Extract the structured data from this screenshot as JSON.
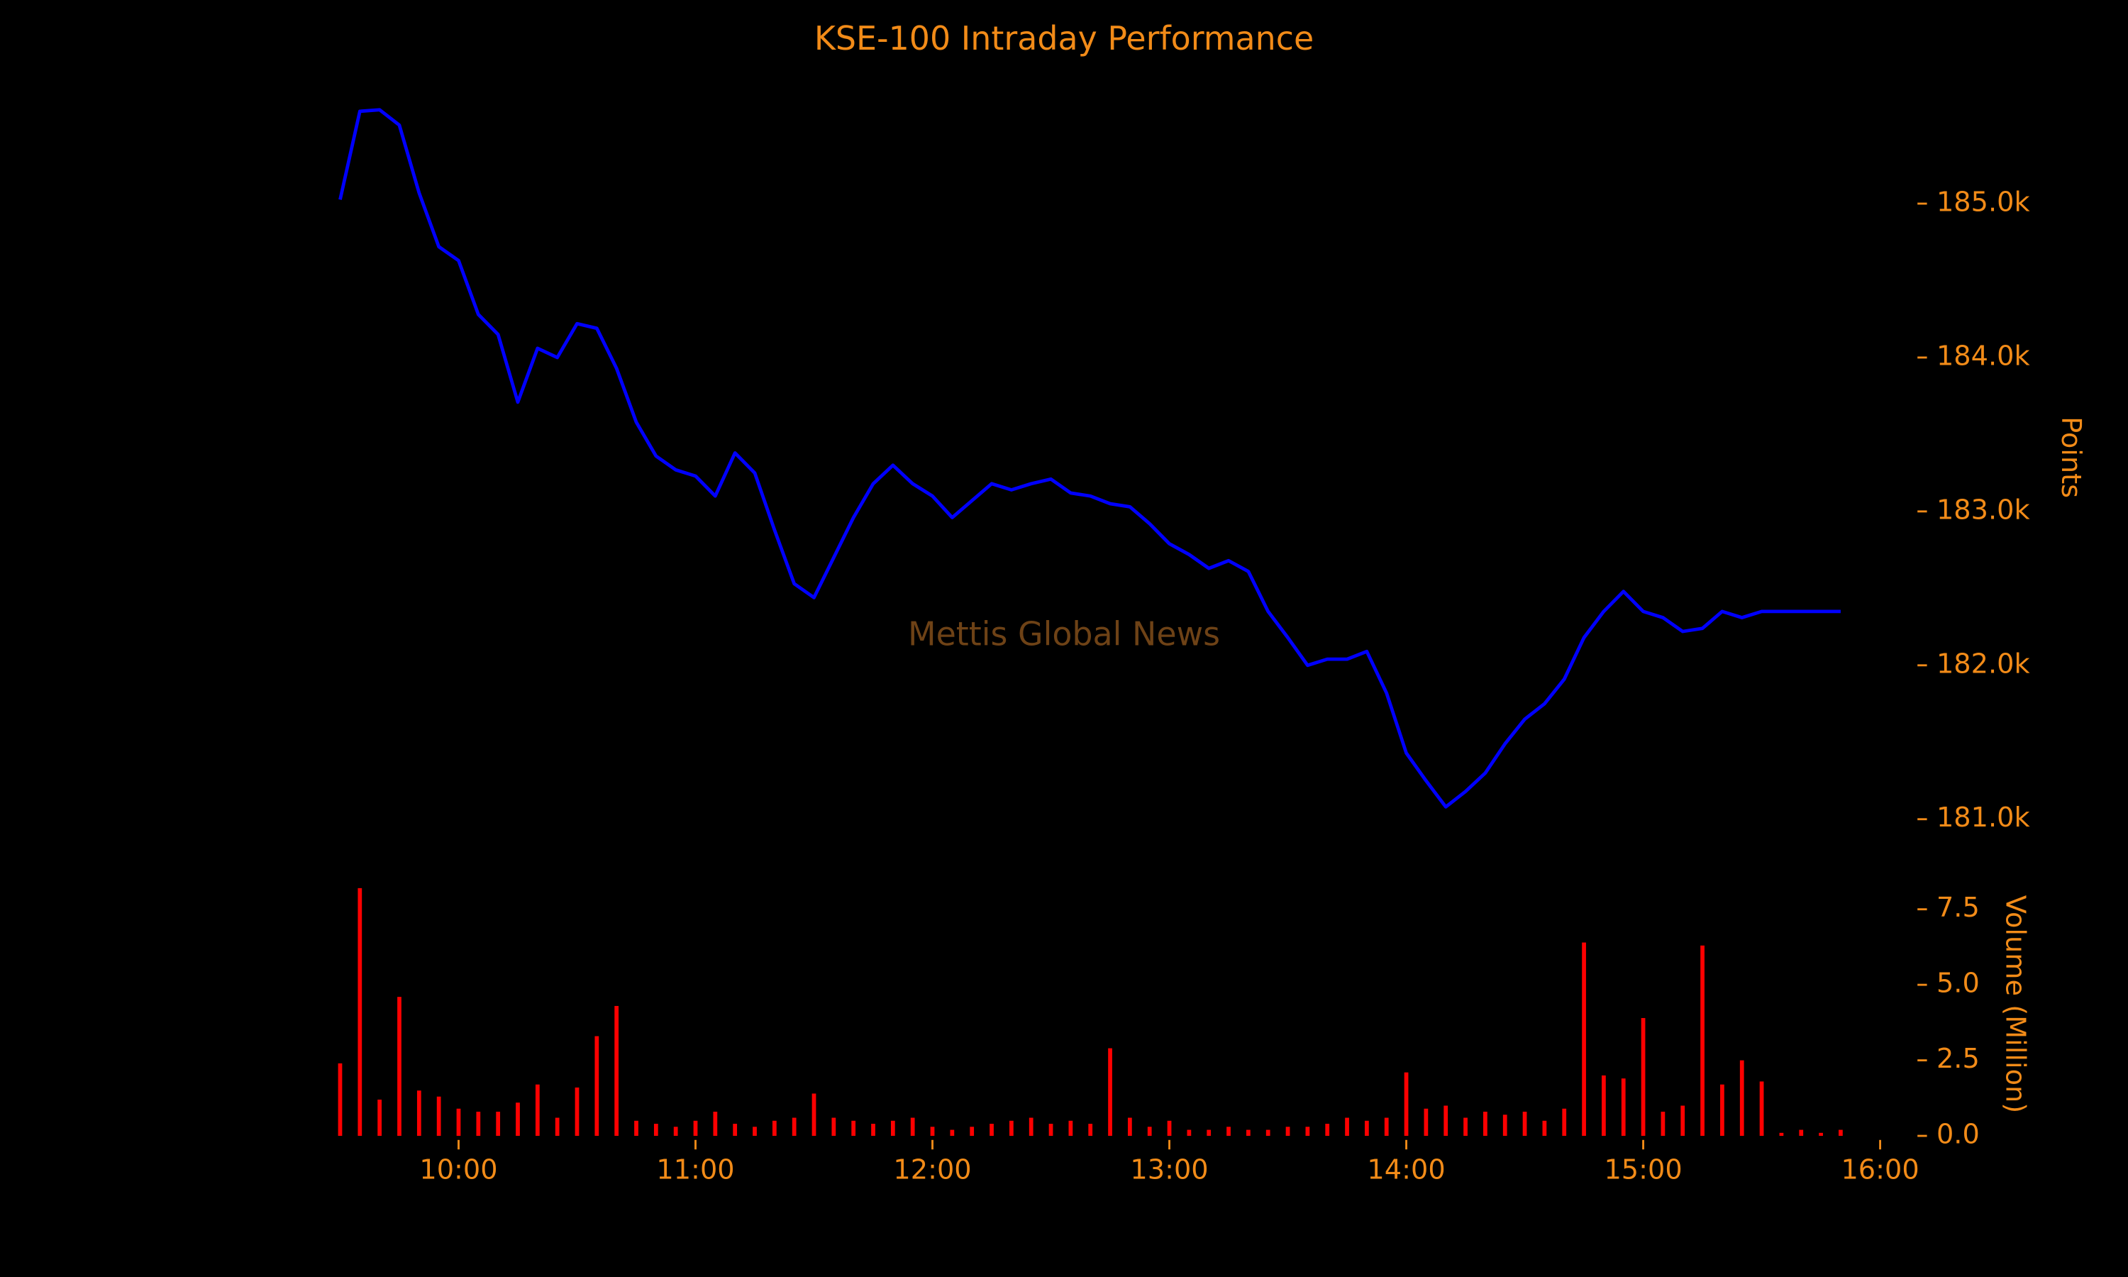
{
  "chart_data": [
    {
      "type": "line",
      "title": "KSE-100 Intraday Performance",
      "ylabel": "Points",
      "annotation": "Mettis Global News",
      "x": [
        "09:30",
        "09:35",
        "09:40",
        "09:45",
        "09:50",
        "09:55",
        "10:00",
        "10:05",
        "10:10",
        "10:15",
        "10:20",
        "10:25",
        "10:30",
        "10:35",
        "10:40",
        "10:45",
        "10:50",
        "10:55",
        "11:00",
        "11:05",
        "11:10",
        "11:15",
        "11:20",
        "11:25",
        "11:30",
        "11:35",
        "11:40",
        "11:45",
        "11:50",
        "11:55",
        "12:00",
        "12:05",
        "12:10",
        "12:15",
        "12:20",
        "12:25",
        "12:30",
        "12:35",
        "12:40",
        "12:45",
        "12:50",
        "12:55",
        "13:00",
        "13:05",
        "13:10",
        "13:15",
        "13:20",
        "13:25",
        "13:30",
        "13:35",
        "13:40",
        "13:45",
        "13:50",
        "13:55",
        "14:00",
        "14:05",
        "14:10",
        "14:15",
        "14:20",
        "14:25",
        "14:30",
        "14:35",
        "14:40",
        "14:45",
        "14:50",
        "14:55",
        "15:00",
        "15:05",
        "15:10",
        "15:15",
        "15:20",
        "15:25",
        "15:30",
        "15:35",
        "15:40",
        "15:45",
        "15:50"
      ],
      "series": [
        {
          "name": "KSE-100",
          "color": "#0000ff",
          "values": [
            185026,
            185600,
            185610,
            185510,
            185070,
            184720,
            184630,
            184280,
            184150,
            183710,
            184060,
            184000,
            184220,
            184190,
            183930,
            183580,
            183360,
            183270,
            183230,
            183100,
            183380,
            183250,
            182880,
            182530,
            182440,
            182700,
            182960,
            183180,
            183300,
            183180,
            183100,
            182960,
            183070,
            183180,
            183140,
            183180,
            183210,
            183120,
            183100,
            183050,
            183030,
            182920,
            182790,
            182720,
            182630,
            182680,
            182610,
            182350,
            182180,
            182000,
            182040,
            182040,
            182090,
            181820,
            181430,
            181250,
            181080,
            181180,
            181300,
            181490,
            181650,
            181750,
            181910,
            182180,
            182350,
            182480,
            182350,
            182310,
            182220,
            182240,
            182350,
            182310,
            182350,
            182350,
            182350,
            182350,
            182350
          ]
        }
      ],
      "xlim": [
        "09:30",
        "16:00"
      ],
      "ylim": [
        180900,
        185750
      ],
      "yticks": [
        {
          "value": 181000,
          "label": "181.0k"
        },
        {
          "value": 182000,
          "label": "182.0k"
        },
        {
          "value": 183000,
          "label": "183.0k"
        },
        {
          "value": 184000,
          "label": "184.0k"
        },
        {
          "value": 185000,
          "label": "185.0k"
        }
      ]
    },
    {
      "type": "bar",
      "ylabel": "Volume (Million)",
      "x": [
        "09:30",
        "09:35",
        "09:40",
        "09:45",
        "09:50",
        "09:55",
        "10:00",
        "10:05",
        "10:10",
        "10:15",
        "10:20",
        "10:25",
        "10:30",
        "10:35",
        "10:40",
        "10:45",
        "10:50",
        "10:55",
        "11:00",
        "11:05",
        "11:10",
        "11:15",
        "11:20",
        "11:25",
        "11:30",
        "11:35",
        "11:40",
        "11:45",
        "11:50",
        "11:55",
        "12:00",
        "12:05",
        "12:10",
        "12:15",
        "12:20",
        "12:25",
        "12:30",
        "12:35",
        "12:40",
        "12:45",
        "12:50",
        "12:55",
        "13:00",
        "13:05",
        "13:10",
        "13:15",
        "13:20",
        "13:25",
        "13:30",
        "13:35",
        "13:40",
        "13:45",
        "13:50",
        "13:55",
        "14:00",
        "14:05",
        "14:10",
        "14:15",
        "14:20",
        "14:25",
        "14:30",
        "14:35",
        "14:40",
        "14:45",
        "14:50",
        "14:55",
        "15:00",
        "15:05",
        "15:10",
        "15:15",
        "15:20",
        "15:25",
        "15:30",
        "15:35",
        "15:40",
        "15:45",
        "15:50"
      ],
      "series": [
        {
          "name": "Volume",
          "color": "#ff0000",
          "values": [
            2.4,
            8.2,
            1.2,
            4.6,
            1.5,
            1.3,
            0.9,
            0.8,
            0.8,
            1.1,
            1.7,
            0.6,
            1.6,
            3.3,
            4.3,
            0.5,
            0.4,
            0.3,
            0.5,
            0.8,
            0.4,
            0.3,
            0.5,
            0.6,
            1.4,
            0.6,
            0.5,
            0.4,
            0.5,
            0.6,
            0.3,
            0.2,
            0.3,
            0.4,
            0.5,
            0.6,
            0.4,
            0.5,
            0.4,
            2.9,
            0.6,
            0.3,
            0.5,
            0.2,
            0.2,
            0.3,
            0.2,
            0.2,
            0.3,
            0.3,
            0.4,
            0.6,
            0.5,
            0.6,
            2.1,
            0.9,
            1.0,
            0.6,
            0.8,
            0.7,
            0.8,
            0.5,
            0.9,
            6.4,
            2.0,
            1.9,
            3.9,
            0.8,
            1.0,
            6.3,
            1.7,
            2.5,
            1.8,
            0.1,
            0.2,
            0.1,
            0.2
          ]
        }
      ],
      "xlim": [
        "09:30",
        "16:00"
      ],
      "xticks": [
        "10:00",
        "11:00",
        "12:00",
        "13:00",
        "14:00",
        "15:00",
        "16:00"
      ],
      "ylim": [
        0,
        8.4
      ],
      "yticks": [
        {
          "value": 0,
          "label": "0.0"
        },
        {
          "value": 2.5,
          "label": "2.5"
        },
        {
          "value": 5,
          "label": "5.0"
        },
        {
          "value": 7.5,
          "label": "7.5"
        }
      ]
    }
  ]
}
